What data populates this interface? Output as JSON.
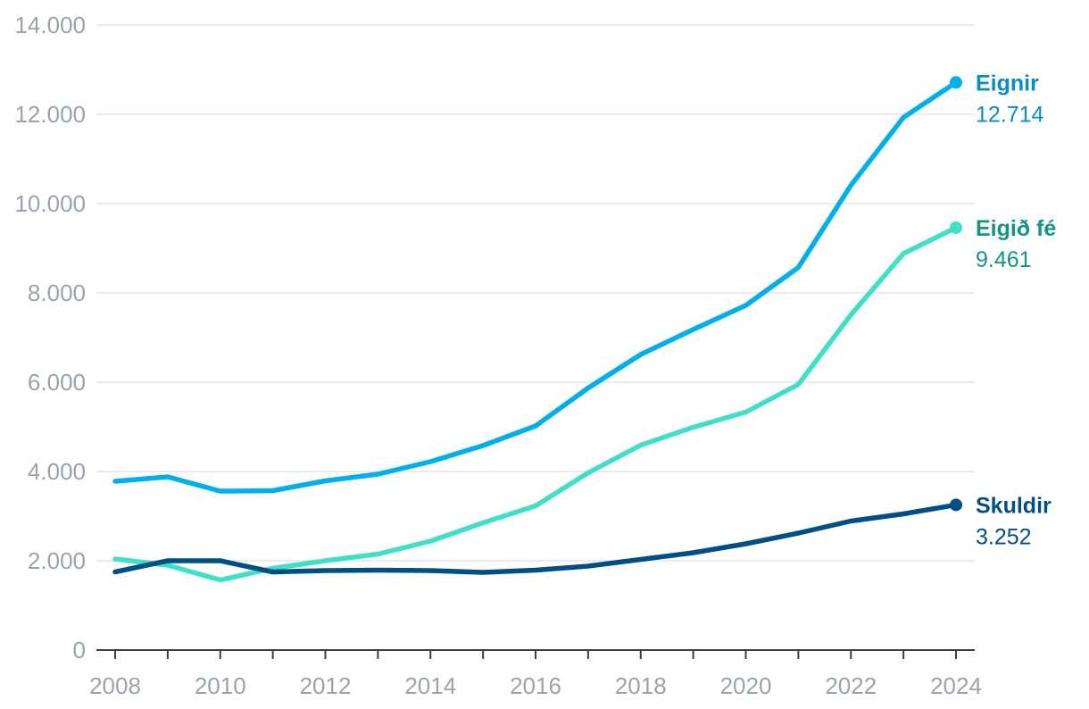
{
  "chart_data": {
    "type": "line",
    "x": [
      2008,
      2009,
      2010,
      2011,
      2012,
      2013,
      2014,
      2015,
      2016,
      2017,
      2018,
      2019,
      2020,
      2021,
      2022,
      2023,
      2024
    ],
    "x_ticks": [
      "2008",
      "2010",
      "2012",
      "2014",
      "2016",
      "2018",
      "2020",
      "2022",
      "2024"
    ],
    "y_ticks": [
      "0",
      "2.000",
      "4.000",
      "6.000",
      "8.000",
      "10.000",
      "12.000",
      "14.000"
    ],
    "ylim": [
      0,
      14000
    ],
    "grid": true,
    "series": [
      {
        "name": "Eignir",
        "value_label": "12.714",
        "color": "#00b0ea",
        "text_color": "#0a8cc4",
        "values": [
          3780,
          3880,
          3560,
          3570,
          3790,
          3940,
          4220,
          4580,
          5020,
          5870,
          6620,
          7180,
          7720,
          8570,
          10410,
          11930,
          12714
        ]
      },
      {
        "name": "Eigið fé",
        "value_label": "9.461",
        "color": "#3fe0c5",
        "text_color": "#13967f",
        "values": [
          2040,
          1900,
          1570,
          1830,
          2000,
          2150,
          2440,
          2850,
          3230,
          3970,
          4590,
          4990,
          5330,
          5950,
          7510,
          8880,
          9461
        ]
      },
      {
        "name": "Skuldir",
        "value_label": "3.252",
        "color": "#004f85",
        "text_color": "#004f85",
        "values": [
          1750,
          2000,
          2000,
          1750,
          1780,
          1790,
          1780,
          1740,
          1790,
          1880,
          2030,
          2180,
          2380,
          2620,
          2890,
          3050,
          3252
        ]
      }
    ]
  }
}
